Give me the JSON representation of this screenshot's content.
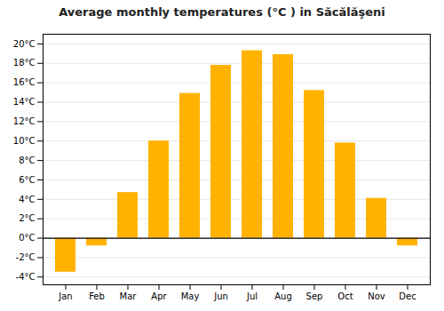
{
  "chart_data": {
    "type": "bar",
    "title": "Average monthly temperatures (°C ) in Săcălăşeni",
    "categories": [
      "Jan",
      "Feb",
      "Mar",
      "Apr",
      "May",
      "Jun",
      "Jul",
      "Aug",
      "Sep",
      "Oct",
      "Nov",
      "Dec"
    ],
    "values": [
      -3.5,
      -0.8,
      4.7,
      10.0,
      14.9,
      17.8,
      19.3,
      18.9,
      15.2,
      9.8,
      4.1,
      -0.8
    ],
    "color": "#FFB300",
    "ylim": [
      -4.8,
      21.0
    ],
    "yticks": [
      {
        "value": -4,
        "label": "-4°C"
      },
      {
        "value": -2,
        "label": "-2°C"
      },
      {
        "value": 0,
        "label": "0°C"
      },
      {
        "value": 2,
        "label": "2°C"
      },
      {
        "value": 4,
        "label": "4°C"
      },
      {
        "value": 6,
        "label": "6°C"
      },
      {
        "value": 8,
        "label": "8°C"
      },
      {
        "value": 10,
        "label": "10°C"
      },
      {
        "value": 12,
        "label": "12°C"
      },
      {
        "value": 14,
        "label": "14°C"
      },
      {
        "value": 16,
        "label": "16°C"
      },
      {
        "value": 18,
        "label": "18°C"
      },
      {
        "value": 20,
        "label": "20°C"
      }
    ],
    "grid": true
  }
}
